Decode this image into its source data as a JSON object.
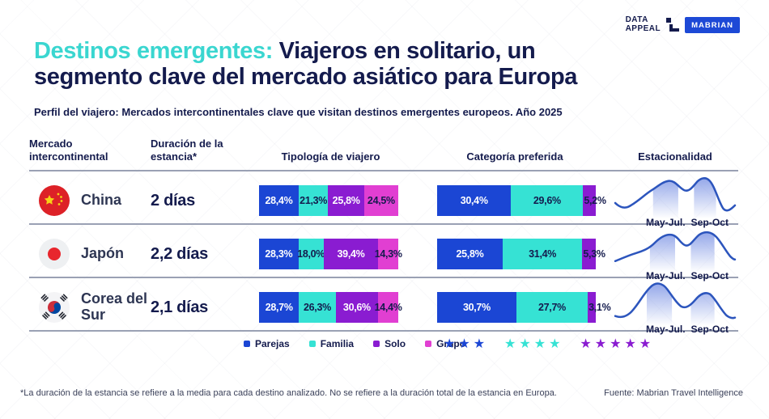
{
  "brand": {
    "name_line1": "DATA",
    "name_line2": "APPEAL",
    "badge": "MABRIAN",
    "badge_color": "#1d49d6"
  },
  "title": {
    "line1_highlight": "Destinos emergentes:",
    "line1_rest": "Viajeros en solitario, un",
    "line2": "segmento clave del mercado asiático para Europa",
    "highlight_color": "#3ad6d0",
    "text_color": "#141b4d"
  },
  "subtitle": "Perfil del viajero: Mercados intercontinentales clave que visitan destinos emergentes europeos. Año 2025",
  "columns": {
    "market": "Mercado intercontinental",
    "duration": "Duración de la estancia*",
    "typology": "Tipología de viajero",
    "preferred": "Categoría preferida",
    "seasonality": "Estacionalidad"
  },
  "palette": {
    "blue": "#1b46d4",
    "cyan": "#36e2d4",
    "purple": "#8a1cd1",
    "magenta": "#e13fd2",
    "navy": "#141b4d",
    "line": "#2c55bd"
  },
  "legend": [
    {
      "label": "Parejas",
      "color": "blue"
    },
    {
      "label": "Familia",
      "color": "cyan"
    },
    {
      "label": "Solo",
      "color": "purple"
    },
    {
      "label": "Grupo",
      "color": "magenta"
    }
  ],
  "star_groups": [
    {
      "count": 3,
      "color": "blue"
    },
    {
      "count": 4,
      "color": "cyan"
    },
    {
      "count": 5,
      "color": "purple"
    }
  ],
  "rows": [
    {
      "market": "China",
      "duration": "2 días",
      "typology": [
        {
          "label": "28,4%",
          "value": 28.4,
          "color": "blue"
        },
        {
          "label": "21,3%",
          "value": 21.3,
          "color": "cyan"
        },
        {
          "label": "25,8%",
          "value": 25.8,
          "color": "purple"
        },
        {
          "label": "24,5%",
          "value": 24.5,
          "color": "magenta"
        }
      ],
      "preferred": [
        {
          "label": "30,4%",
          "value": 30.4,
          "color": "blue"
        },
        {
          "label": "29,6%",
          "value": 29.6,
          "color": "cyan"
        },
        {
          "label": "5,2%",
          "value": 5.2,
          "color": "purple"
        }
      ],
      "season_labels": [
        "May-Jul.",
        "Sep-Oct"
      ]
    },
    {
      "market": "Japón",
      "duration": "2,2 días",
      "typology": [
        {
          "label": "28,3%",
          "value": 28.3,
          "color": "blue"
        },
        {
          "label": "18,0%",
          "value": 18.0,
          "color": "cyan"
        },
        {
          "label": "39,4%",
          "value": 39.4,
          "color": "purple"
        },
        {
          "label": "14,3%",
          "value": 14.3,
          "color": "magenta"
        }
      ],
      "preferred": [
        {
          "label": "25,8%",
          "value": 25.8,
          "color": "blue"
        },
        {
          "label": "31,4%",
          "value": 31.4,
          "color": "cyan"
        },
        {
          "label": "5,3%",
          "value": 5.3,
          "color": "purple"
        }
      ],
      "season_labels": [
        "May-Jul.",
        "Sep-Oct"
      ]
    },
    {
      "market": "Corea del Sur",
      "duration": "2,1 días",
      "typology": [
        {
          "label": "28,7%",
          "value": 28.7,
          "color": "blue"
        },
        {
          "label": "26,3%",
          "value": 26.3,
          "color": "cyan"
        },
        {
          "label": "30,6%",
          "value": 30.6,
          "color": "purple"
        },
        {
          "label": "14,4%",
          "value": 14.4,
          "color": "magenta"
        }
      ],
      "preferred": [
        {
          "label": "30,7%",
          "value": 30.7,
          "color": "blue"
        },
        {
          "label": "27,7%",
          "value": 27.7,
          "color": "cyan"
        },
        {
          "label": "3,1%",
          "value": 3.1,
          "color": "purple"
        }
      ],
      "season_labels": [
        "May-Jul.",
        "Sep-Oct"
      ]
    }
  ],
  "footnote": "*La duración de la estancia se refiere a la media para cada destino analizado. No se refiere a la duración total de la estancia en Europa.",
  "source": "Fuente: Mabrian Travel Intelligence",
  "chart_data": [
    {
      "type": "bar",
      "subtype": "stacked-horizontal",
      "title": "Tipología de viajero",
      "categories": [
        "China",
        "Japón",
        "Corea del Sur"
      ],
      "series": [
        {
          "name": "Parejas",
          "values": [
            28.4,
            28.3,
            28.7
          ]
        },
        {
          "name": "Familia",
          "values": [
            21.3,
            18.0,
            26.3
          ]
        },
        {
          "name": "Solo",
          "values": [
            25.8,
            39.4,
            30.6
          ]
        },
        {
          "name": "Grupo",
          "values": [
            24.5,
            14.3,
            14.4
          ]
        }
      ],
      "unit": "%",
      "legend_position": "bottom"
    },
    {
      "type": "bar",
      "subtype": "stacked-horizontal",
      "title": "Categoría preferida",
      "categories": [
        "China",
        "Japón",
        "Corea del Sur"
      ],
      "series": [
        {
          "name": "3 estrellas",
          "values": [
            30.4,
            25.8,
            30.7
          ]
        },
        {
          "name": "4 estrellas",
          "values": [
            29.6,
            31.4,
            27.7
          ]
        },
        {
          "name": "5 estrellas",
          "values": [
            5.2,
            5.3,
            3.1
          ]
        }
      ],
      "unit": "%",
      "legend_position": "bottom"
    },
    {
      "type": "line",
      "title": "Estacionalidad",
      "categories": [
        "China",
        "Japón",
        "Corea del Sur"
      ],
      "annotations": [
        "May-Jul.",
        "Sep-Oct"
      ],
      "note": "Curvas de estacionalidad por mercado con dos picos sombreados: May-Jul. y Sep-Oct"
    }
  ]
}
